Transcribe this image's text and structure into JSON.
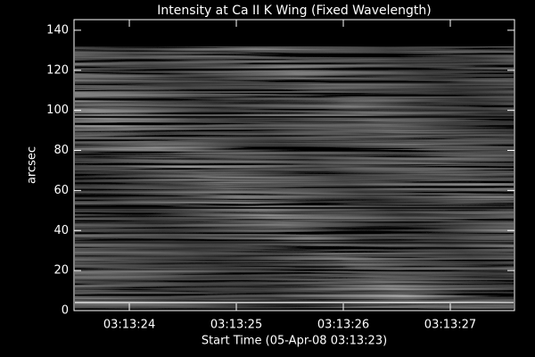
{
  "chart_data": {
    "type": "image",
    "title": "Intensity at Ca II K Wing (Fixed Wavelength)",
    "x_label": "Start Time (05-Apr-08 03:13:23)",
    "y_label": "arcsec",
    "xlim": [
      0.483,
      4.6
    ],
    "xticks": [
      {
        "value": 1,
        "label": "03:13:24"
      },
      {
        "value": 2,
        "label": "03:13:25"
      },
      {
        "value": 3,
        "label": "03:13:26"
      },
      {
        "value": 4,
        "label": "03:13:27"
      }
    ],
    "ylim": [
      0,
      145.3
    ],
    "yticks": [
      0,
      20,
      40,
      60,
      80,
      100,
      120,
      140
    ],
    "colormap": "gray"
  }
}
